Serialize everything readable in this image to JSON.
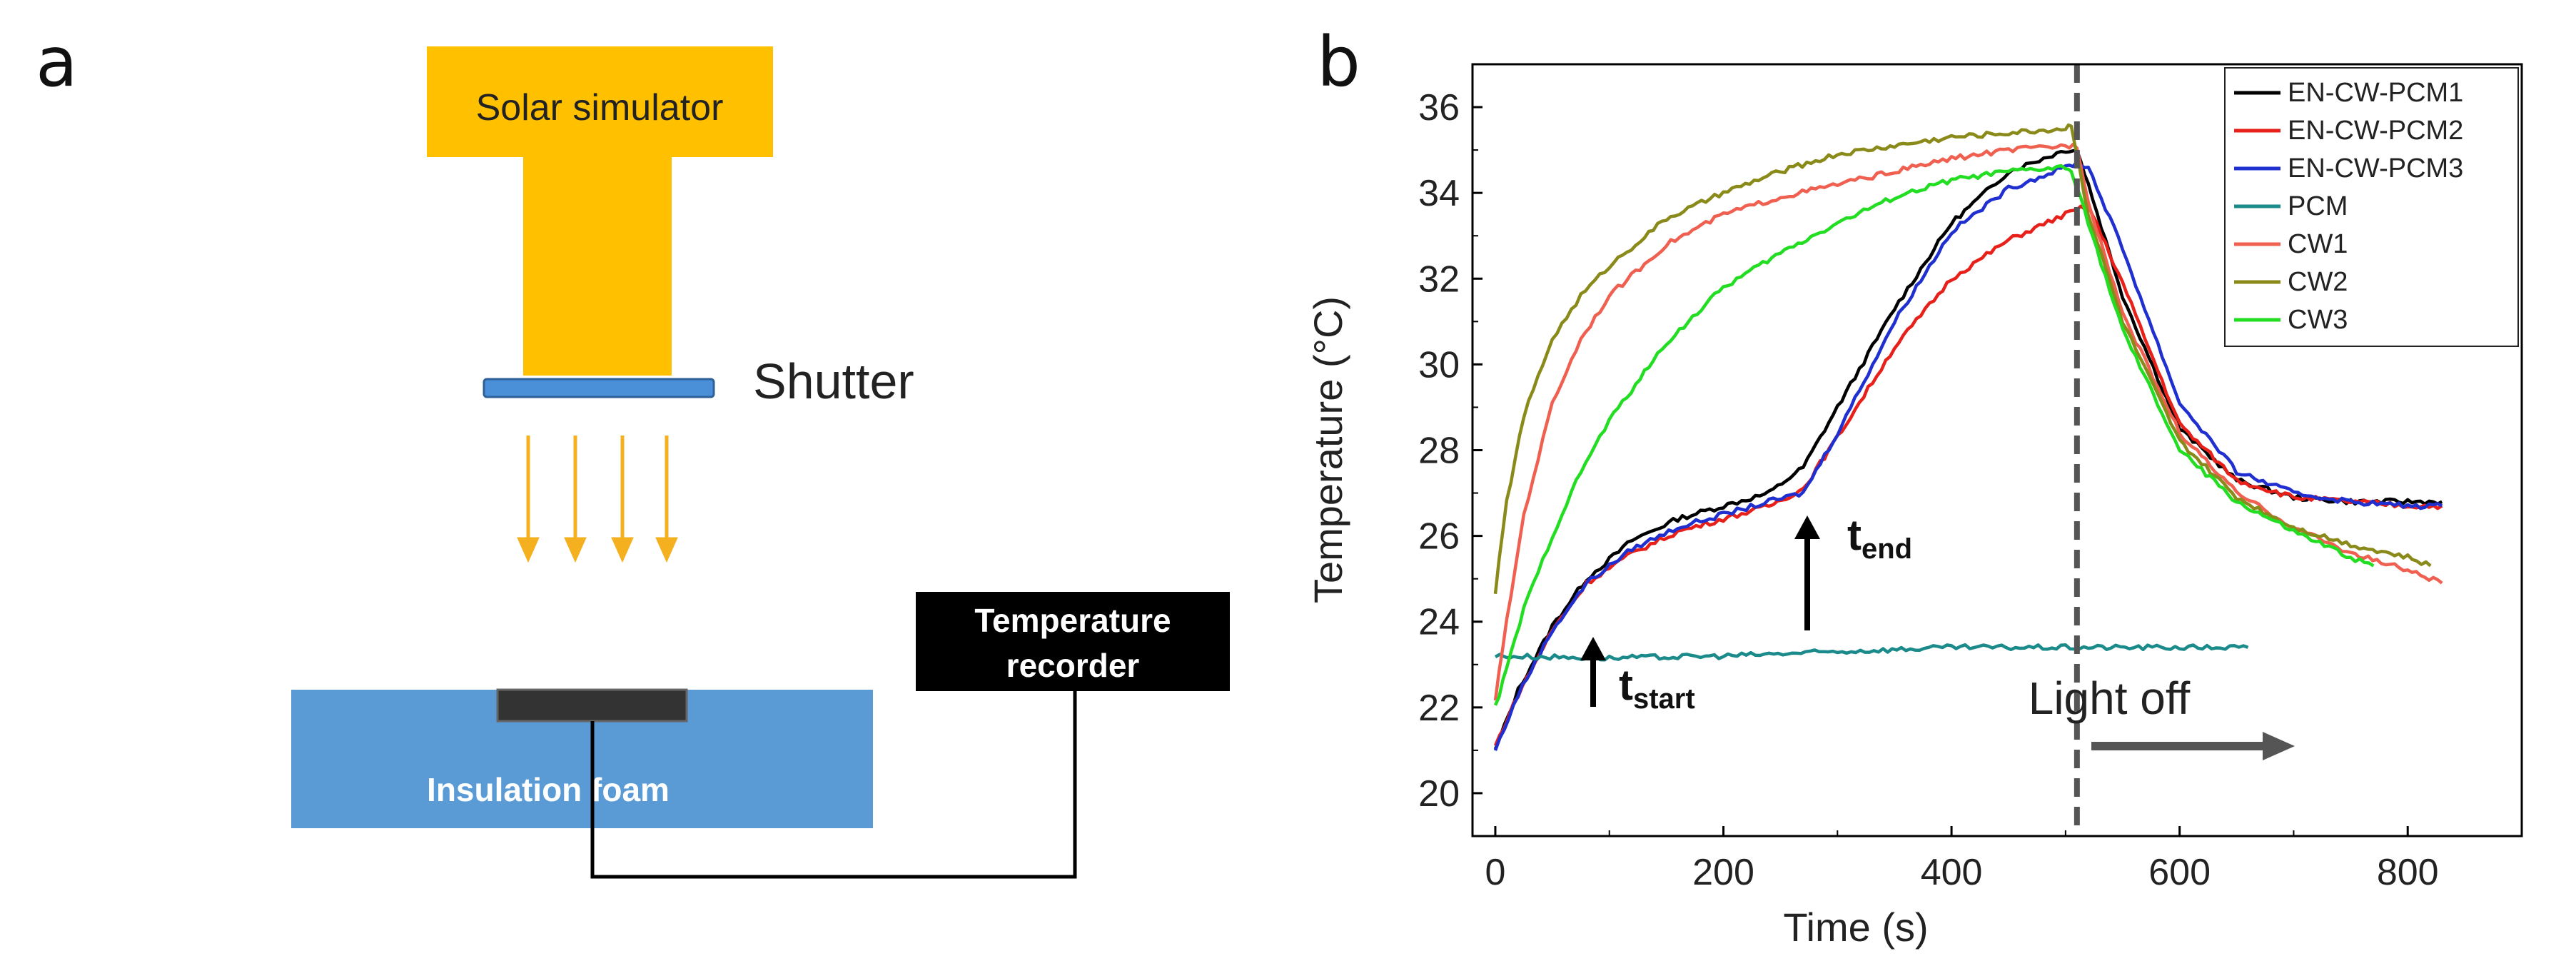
{
  "panel_a": {
    "letter": "a",
    "solar_label": "Solar simulator",
    "shutter_label": "Shutter",
    "recorder_line1": "Temperature",
    "recorder_line2": "recorder",
    "foam_label": "Insulation foam",
    "colors": {
      "solar": "#ffc000",
      "shutter": "#4a90d9",
      "foam": "#5b9bd5",
      "arrows": "#f5b020",
      "recorder": "#000000",
      "sample": "#333333"
    }
  },
  "panel_b": {
    "letter": "b",
    "annotations": {
      "t_start_main": "t",
      "t_start_sub": "start",
      "t_end_main": "t",
      "t_end_sub": "end",
      "light_off": "Light off"
    }
  },
  "chart_data": {
    "type": "line",
    "title": "",
    "xlabel": "Time (s)",
    "ylabel": "Temperature (°C)",
    "xlim": [
      -20,
      900
    ],
    "ylim": [
      19.0,
      37.0
    ],
    "xticks": [
      0,
      200,
      400,
      600,
      800
    ],
    "yticks": [
      20,
      22,
      24,
      26,
      28,
      30,
      32,
      34,
      36
    ],
    "grid": false,
    "legend_position": "top-right",
    "light_off_time": 510,
    "series": [
      {
        "name": "EN-CW-PCM1",
        "color": "#000000",
        "x": [
          0,
          20,
          50,
          80,
          120,
          160,
          200,
          240,
          270,
          300,
          350,
          400,
          450,
          500,
          510,
          520,
          550,
          600,
          650,
          700,
          750,
          800,
          830
        ],
        "y": [
          21.0,
          22.4,
          23.9,
          25.0,
          25.9,
          26.4,
          26.7,
          27.0,
          27.6,
          29.0,
          31.3,
          33.3,
          34.5,
          35.0,
          35.0,
          34.2,
          31.6,
          28.5,
          27.3,
          26.9,
          26.8,
          26.8,
          26.8
        ]
      },
      {
        "name": "EN-CW-PCM2",
        "color": "#e8201a",
        "x": [
          0,
          20,
          50,
          80,
          120,
          160,
          200,
          240,
          270,
          300,
          350,
          400,
          450,
          500,
          510,
          520,
          550,
          600,
          650,
          700,
          750,
          800,
          830
        ],
        "y": [
          21.1,
          22.3,
          23.8,
          24.9,
          25.6,
          26.1,
          26.4,
          26.7,
          27.1,
          28.3,
          30.4,
          32.0,
          32.9,
          33.5,
          33.6,
          33.7,
          31.9,
          28.6,
          27.3,
          26.9,
          26.8,
          26.7,
          26.7
        ]
      },
      {
        "name": "EN-CW-PCM3",
        "color": "#1f2fd0",
        "x": [
          0,
          20,
          50,
          80,
          120,
          160,
          200,
          240,
          270,
          300,
          350,
          400,
          450,
          500,
          510,
          520,
          550,
          600,
          650,
          700,
          750,
          800,
          830
        ],
        "y": [
          21.0,
          22.3,
          23.8,
          24.9,
          25.7,
          26.2,
          26.5,
          26.8,
          27.0,
          28.4,
          31.0,
          33.1,
          34.1,
          34.6,
          34.7,
          34.6,
          32.7,
          29.1,
          27.5,
          27.0,
          26.8,
          26.7,
          26.7
        ]
      },
      {
        "name": "PCM",
        "color": "#1a8a8a",
        "x": [
          0,
          100,
          200,
          300,
          400,
          500,
          600,
          660
        ],
        "y": [
          23.2,
          23.15,
          23.2,
          23.3,
          23.4,
          23.4,
          23.4,
          23.4
        ]
      },
      {
        "name": "CW1",
        "color": "#f06050",
        "x": [
          0,
          10,
          25,
          50,
          75,
          100,
          150,
          200,
          250,
          300,
          350,
          400,
          450,
          500,
          510,
          520,
          550,
          600,
          650,
          700,
          750,
          800,
          830
        ],
        "y": [
          22.2,
          24.0,
          26.5,
          29.1,
          30.6,
          31.6,
          32.8,
          33.5,
          33.9,
          34.2,
          34.5,
          34.8,
          35.0,
          35.1,
          35.1,
          33.8,
          31.2,
          28.4,
          27.0,
          26.2,
          25.6,
          25.2,
          24.9
        ]
      },
      {
        "name": "CW2",
        "color": "#8a8a1a",
        "x": [
          0,
          10,
          25,
          50,
          75,
          100,
          150,
          200,
          250,
          300,
          350,
          400,
          450,
          500,
          505,
          520,
          550,
          600,
          650,
          700,
          750,
          800,
          820
        ],
        "y": [
          24.7,
          26.8,
          28.8,
          30.6,
          31.6,
          32.3,
          33.4,
          34.0,
          34.5,
          34.9,
          35.1,
          35.3,
          35.4,
          35.5,
          35.6,
          33.5,
          31.0,
          28.2,
          26.9,
          26.2,
          25.8,
          25.5,
          25.3
        ]
      },
      {
        "name": "CW3",
        "color": "#22dd22",
        "x": [
          0,
          10,
          25,
          50,
          75,
          100,
          150,
          200,
          250,
          300,
          350,
          400,
          450,
          500,
          505,
          520,
          550,
          600,
          650,
          700,
          750,
          770
        ],
        "y": [
          22.0,
          22.9,
          24.3,
          26.0,
          27.5,
          28.7,
          30.5,
          31.8,
          32.6,
          33.3,
          33.9,
          34.3,
          34.5,
          34.6,
          34.5,
          33.3,
          30.8,
          28.0,
          26.8,
          26.1,
          25.5,
          25.3
        ]
      }
    ]
  }
}
